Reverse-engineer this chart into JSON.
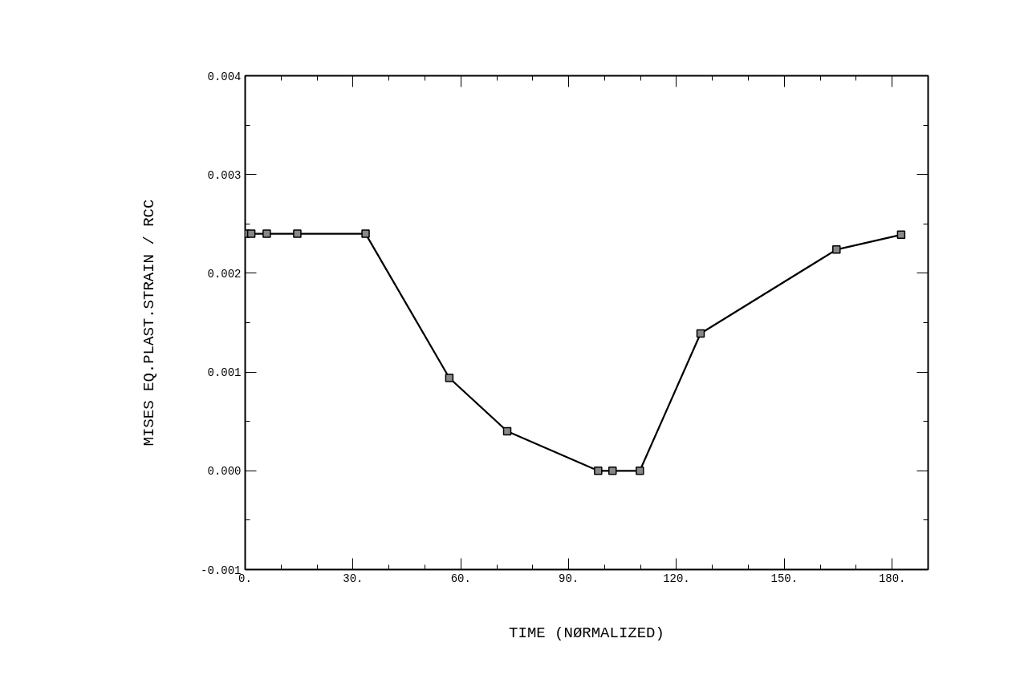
{
  "chart_data": {
    "type": "line",
    "xlabel": "TIME (NØRMALIZED)",
    "ylabel": "MISES EQ.PLAST.STRAIN / RCC",
    "x": [
      0.2,
      1.7,
      6,
      14.5,
      33.5,
      56.8,
      72.9,
      98.2,
      102.2,
      109.8,
      126.7,
      164.5,
      182.5
    ],
    "series": [
      {
        "color": "#000000",
        "values": [
          0.0024,
          0.0024,
          0.0024,
          0.0024,
          0.0024,
          0.00094,
          0.0004,
          0.0,
          0.0,
          0.0,
          0.00139,
          0.00224,
          0.00239
        ]
      }
    ],
    "xlim": [
      0,
      190
    ],
    "ylim": [
      -0.001,
      0.004
    ],
    "xticks": [
      {
        "value": 0,
        "label": "0."
      },
      {
        "value": 30,
        "label": "30."
      },
      {
        "value": 60,
        "label": "60."
      },
      {
        "value": 90,
        "label": "90."
      },
      {
        "value": 120,
        "label": "120."
      },
      {
        "value": 150,
        "label": "150."
      },
      {
        "value": 180,
        "label": "180."
      }
    ],
    "yticks": [
      {
        "value": -0.001,
        "label": "-0.001"
      },
      {
        "value": 0,
        "label": "0.000"
      },
      {
        "value": 0.001,
        "label": "0.001"
      },
      {
        "value": 0.002,
        "label": "0.002"
      },
      {
        "value": 0.003,
        "label": "0.003"
      },
      {
        "value": 0.004,
        "label": "0.004"
      }
    ],
    "grid": false,
    "marker": "square",
    "line_style": "solid"
  }
}
